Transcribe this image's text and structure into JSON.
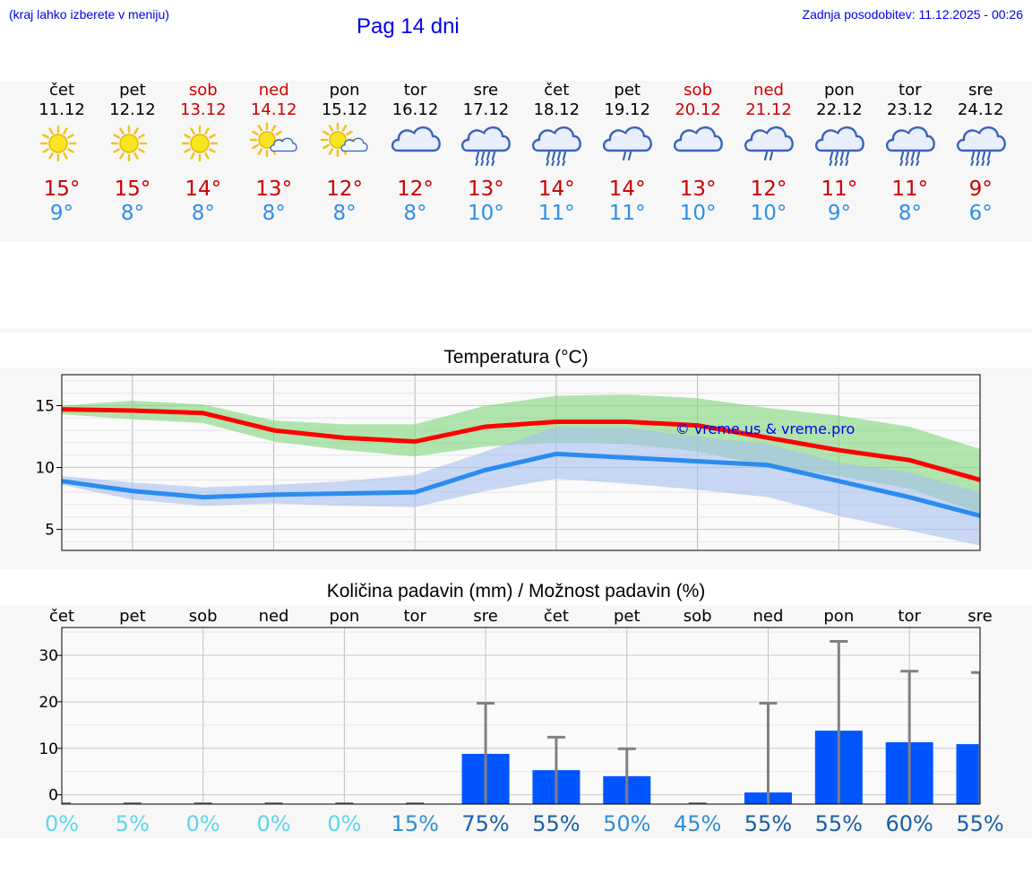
{
  "header": {
    "left_note": "(kraj lahko izberete v meniju)",
    "title": "Pag 14 dni",
    "updated": "Zadnja posodobitev: 11.12.2025 - 00:26"
  },
  "days": [
    {
      "name": "čet",
      "date": "11.12",
      "weekend": false,
      "icon": "sun-icon",
      "tmax": "15°",
      "tmin": "9°"
    },
    {
      "name": "pet",
      "date": "12.12",
      "weekend": false,
      "icon": "sun-icon",
      "tmax": "15°",
      "tmin": "8°"
    },
    {
      "name": "sob",
      "date": "13.12",
      "weekend": true,
      "icon": "sun-icon",
      "tmax": "14°",
      "tmin": "8°"
    },
    {
      "name": "ned",
      "date": "14.12",
      "weekend": true,
      "icon": "sun-cloud-icon",
      "tmax": "13°",
      "tmin": "8°"
    },
    {
      "name": "pon",
      "date": "15.12",
      "weekend": false,
      "icon": "sun-cloud-icon",
      "tmax": "12°",
      "tmin": "8°"
    },
    {
      "name": "tor",
      "date": "16.12",
      "weekend": false,
      "icon": "cloud-icon",
      "tmax": "12°",
      "tmin": "8°"
    },
    {
      "name": "sre",
      "date": "17.12",
      "weekend": false,
      "icon": "cloud-rain-icon",
      "tmax": "13°",
      "tmin": "10°"
    },
    {
      "name": "čet",
      "date": "18.12",
      "weekend": false,
      "icon": "cloud-rain-icon",
      "tmax": "14°",
      "tmin": "11°"
    },
    {
      "name": "pet",
      "date": "19.12",
      "weekend": false,
      "icon": "cloud-light-rain-icon",
      "tmax": "14°",
      "tmin": "11°"
    },
    {
      "name": "sob",
      "date": "20.12",
      "weekend": true,
      "icon": "cloud-icon",
      "tmax": "13°",
      "tmin": "10°"
    },
    {
      "name": "ned",
      "date": "21.12",
      "weekend": true,
      "icon": "cloud-light-rain-icon",
      "tmax": "12°",
      "tmin": "10°"
    },
    {
      "name": "pon",
      "date": "22.12",
      "weekend": false,
      "icon": "cloud-rain-icon",
      "tmax": "11°",
      "tmin": "9°"
    },
    {
      "name": "tor",
      "date": "23.12",
      "weekend": false,
      "icon": "cloud-rain-icon",
      "tmax": "11°",
      "tmin": "8°"
    },
    {
      "name": "sre",
      "date": "24.12",
      "weekend": false,
      "icon": "cloud-rain-icon",
      "tmax": "9°",
      "tmin": "6°"
    }
  ],
  "chart_data": [
    {
      "type": "line",
      "title": "Temperatura (°C)",
      "watermark": "© vreme.us & vreme.pro",
      "x": [
        0,
        1,
        2,
        3,
        4,
        5,
        6,
        7,
        8,
        9,
        10,
        11,
        12,
        13
      ],
      "ylim": [
        3.3,
        17.5
      ],
      "yticks": [
        5,
        10,
        15
      ],
      "grid": true,
      "series": [
        {
          "name": "max",
          "color": "#ff0000",
          "values": [
            14.7,
            14.6,
            14.4,
            13.0,
            12.4,
            12.1,
            13.3,
            13.7,
            13.7,
            13.4,
            12.4,
            11.4,
            10.6,
            9.0
          ],
          "band_low": [
            14.3,
            13.9,
            13.6,
            12.1,
            11.4,
            10.9,
            11.7,
            12.0,
            11.9,
            11.3,
            10.1,
            9.3,
            8.3,
            6.3
          ],
          "band_high": [
            15.0,
            15.4,
            15.1,
            13.8,
            13.5,
            13.5,
            15.0,
            15.8,
            15.9,
            15.6,
            14.8,
            14.2,
            13.3,
            11.5
          ],
          "band_color": "#7fd67a"
        },
        {
          "name": "min",
          "color": "#2a8cf0",
          "values": [
            8.9,
            8.1,
            7.6,
            7.8,
            7.9,
            8.0,
            9.8,
            11.1,
            10.8,
            10.5,
            10.2,
            8.9,
            7.6,
            6.1
          ],
          "band_low": [
            8.6,
            7.4,
            6.9,
            7.1,
            6.9,
            6.8,
            8.1,
            9.1,
            8.7,
            8.2,
            7.6,
            6.1,
            4.9,
            3.7
          ],
          "band_high": [
            9.3,
            8.8,
            8.4,
            8.6,
            8.9,
            9.4,
            11.3,
            13.3,
            13.2,
            12.5,
            11.9,
            10.4,
            9.6,
            8.0
          ],
          "band_color": "#a7bff0"
        }
      ]
    },
    {
      "type": "bar",
      "title": "Količina padavin (mm) / Možnost padavin (%)",
      "categories": [
        "čet",
        "pet",
        "sob",
        "ned",
        "pon",
        "tor",
        "sre",
        "čet",
        "pet",
        "sob",
        "ned",
        "pon",
        "tor",
        "sre"
      ],
      "values": [
        0,
        0,
        0,
        0,
        0,
        0,
        8.8,
        5.3,
        4.0,
        0,
        0.5,
        13.8,
        11.3,
        10.9
      ],
      "error_high": [
        0,
        0,
        0,
        0,
        0,
        0,
        19.7,
        12.4,
        9.9,
        0,
        19.7,
        33.0,
        26.6,
        26.3
      ],
      "probability": [
        "0%",
        "5%",
        "0%",
        "0%",
        "0%",
        "15%",
        "75%",
        "55%",
        "50%",
        "45%",
        "55%",
        "55%",
        "60%",
        "55%"
      ],
      "probability_colors": [
        "#5bd6ea",
        "#5bd6ea",
        "#5bd6ea",
        "#5bd6ea",
        "#5bd6ea",
        "#2e8fd6",
        "#1a5fa8",
        "#1a5fa8",
        "#2e8fd6",
        "#2e8fd6",
        "#1a5fa8",
        "#1a5fa8",
        "#1a5fa8",
        "#1a5fa8"
      ],
      "ylim": [
        -2,
        36
      ],
      "yticks": [
        0,
        10,
        20,
        30
      ],
      "bar_color": "#0055ff",
      "error_color": "#808080"
    }
  ]
}
